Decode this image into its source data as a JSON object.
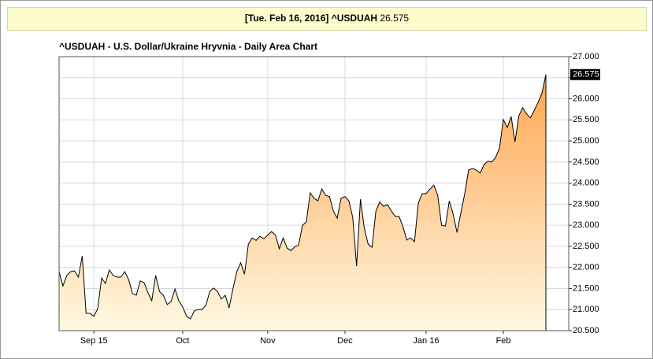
{
  "header": {
    "date": "[Tue. Feb 16, 2016]",
    "symbol": "^USDUAH",
    "price": "26.575"
  },
  "chart_data": {
    "type": "area",
    "title": "^USDUAH - U.S. Dollar/Ukraine Hryvnia - Daily Area Chart",
    "categories": [
      null,
      null,
      null,
      null,
      null,
      null,
      null,
      null,
      null,
      "Sep 15",
      null,
      null,
      null,
      null,
      null,
      null,
      null,
      null,
      null,
      null,
      null,
      null,
      null,
      null,
      null,
      null,
      null,
      null,
      null,
      null,
      null,
      null,
      "Oct",
      null,
      null,
      null,
      null,
      null,
      null,
      null,
      null,
      null,
      null,
      null,
      null,
      null,
      null,
      null,
      null,
      null,
      null,
      null,
      null,
      null,
      "Nov",
      null,
      null,
      null,
      null,
      null,
      null,
      null,
      null,
      null,
      null,
      null,
      null,
      null,
      null,
      null,
      null,
      null,
      null,
      null,
      "Dec",
      null,
      null,
      null,
      null,
      null,
      null,
      null,
      null,
      null,
      null,
      null,
      null,
      null,
      null,
      null,
      null,
      null,
      null,
      null,
      null,
      "Jan 16",
      null,
      null,
      null,
      null,
      null,
      null,
      null,
      null,
      null,
      null,
      null,
      null,
      null,
      null,
      null,
      null,
      null,
      null,
      null,
      "Feb",
      null,
      null,
      null,
      null,
      null,
      null,
      null,
      null,
      null,
      null,
      null
    ],
    "values": [
      21.9,
      21.56,
      21.81,
      21.9,
      21.92,
      21.77,
      22.27,
      20.91,
      20.91,
      20.84,
      21.02,
      21.75,
      21.62,
      21.94,
      21.81,
      21.77,
      21.77,
      21.9,
      21.71,
      21.38,
      21.34,
      21.68,
      21.64,
      21.4,
      21.21,
      21.81,
      21.43,
      21.34,
      21.12,
      21.19,
      21.49,
      21.21,
      21.06,
      20.84,
      20.78,
      20.97,
      21.0,
      21.0,
      21.1,
      21.43,
      21.51,
      21.43,
      21.25,
      21.34,
      21.04,
      21.49,
      21.9,
      22.11,
      21.84,
      22.55,
      22.7,
      22.64,
      22.74,
      22.68,
      22.77,
      22.85,
      22.77,
      22.44,
      22.7,
      22.46,
      22.4,
      22.49,
      22.53,
      23.0,
      23.08,
      23.77,
      23.64,
      23.58,
      23.86,
      23.71,
      23.68,
      23.34,
      23.17,
      23.64,
      23.68,
      23.58,
      23.19,
      22.03,
      23.62,
      22.93,
      22.55,
      22.48,
      23.34,
      23.55,
      23.45,
      23.49,
      23.34,
      23.21,
      23.21,
      22.97,
      22.65,
      22.7,
      22.61,
      23.53,
      23.75,
      23.75,
      23.86,
      23.95,
      23.71,
      23.0,
      22.98,
      23.58,
      23.26,
      22.83,
      23.3,
      23.75,
      24.31,
      24.35,
      24.31,
      24.24,
      24.44,
      24.52,
      24.5,
      24.61,
      24.83,
      25.51,
      25.32,
      25.58,
      24.98,
      25.6,
      25.79,
      25.64,
      25.55,
      25.73,
      25.92,
      26.14,
      26.575
    ],
    "last_value_label": "26.575",
    "color": "#ffa54f",
    "fill_bottom_color": "#fff9e3",
    "line_color": "#000000",
    "ylim": [
      20.5,
      27
    ],
    "yticks": [
      {
        "value": 20.5,
        "label": "20.500"
      },
      {
        "value": 21,
        "label": "21.000"
      },
      {
        "value": 21.5,
        "label": "21.500"
      },
      {
        "value": 22,
        "label": "22.000"
      },
      {
        "value": 22.5,
        "label": "22.500"
      },
      {
        "value": 23,
        "label": "23.000"
      },
      {
        "value": 23.5,
        "label": "23.500"
      },
      {
        "value": 24,
        "label": "24.000"
      },
      {
        "value": 24.5,
        "label": "24.500"
      },
      {
        "value": 25,
        "label": "25.000"
      },
      {
        "value": 25.5,
        "label": "25.500"
      },
      {
        "value": 26,
        "label": "26.000"
      },
      {
        "value": 26.5,
        "label": "26.500"
      },
      {
        "value": 27,
        "label": "27.000"
      }
    ],
    "y_axis_side": "right",
    "grid": true
  }
}
